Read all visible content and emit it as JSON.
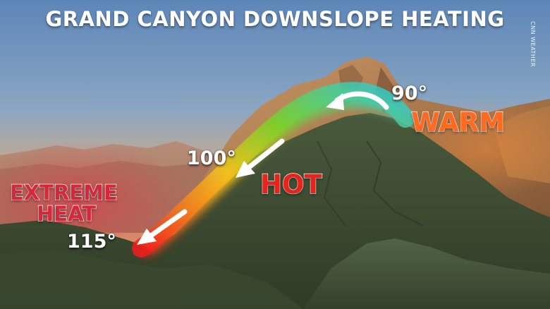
{
  "title": "GRAND CANYON DOWNSLOPE HEATING",
  "credit": "CNN WEATHER",
  "temperatures": {
    "top": "90°",
    "middle": "100°",
    "bottom": "115°"
  },
  "labels": {
    "warm": "WARM",
    "hot": "HOT",
    "extreme_line1": "EXTREME",
    "extreme_line2": "HEAT"
  },
  "colors": {
    "warm": "#ff6a1f",
    "hot": "#e8231a",
    "extreme": "#d6283a",
    "arrow_cool": "#2ec9d8",
    "arrow_mid": "#7ccf2a",
    "arrow_hot": "#f01d1d"
  }
}
